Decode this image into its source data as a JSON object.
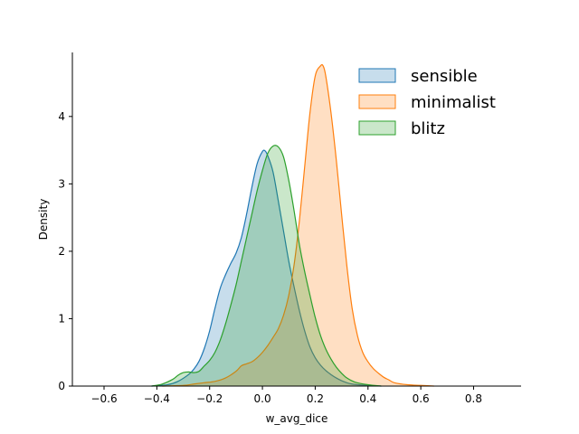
{
  "chart_data": {
    "type": "area",
    "xlabel": "w_avg_dice",
    "ylabel": "Density",
    "xlim": [
      -0.72,
      0.98
    ],
    "ylim": [
      0,
      4.95
    ],
    "x_ticks": [
      -0.6,
      -0.4,
      -0.2,
      0.0,
      0.2,
      0.4,
      0.6,
      0.8
    ],
    "x_tick_labels": [
      "−0.6",
      "−0.4",
      "−0.2",
      "0.0",
      "0.2",
      "0.4",
      "0.6",
      "0.8"
    ],
    "y_ticks": [
      0,
      1,
      2,
      3,
      4
    ],
    "y_tick_labels": [
      "0",
      "1",
      "2",
      "3",
      "4"
    ],
    "grid": false,
    "legend_position": "top-right",
    "series": [
      {
        "name": "sensible",
        "color": "#1f77b4",
        "x": [
          -0.42,
          -0.36,
          -0.32,
          -0.28,
          -0.26,
          -0.24,
          -0.22,
          -0.2,
          -0.18,
          -0.16,
          -0.14,
          -0.12,
          -0.1,
          -0.08,
          -0.06,
          -0.04,
          -0.02,
          0.0,
          0.01,
          0.02,
          0.04,
          0.06,
          0.08,
          0.1,
          0.12,
          0.14,
          0.16,
          0.18,
          0.2,
          0.22,
          0.24,
          0.26,
          0.28,
          0.3,
          0.32,
          0.34,
          0.36,
          0.4,
          0.45
        ],
        "y": [
          0.0,
          0.02,
          0.07,
          0.17,
          0.25,
          0.37,
          0.56,
          0.82,
          1.15,
          1.45,
          1.65,
          1.82,
          1.97,
          2.2,
          2.55,
          2.95,
          3.3,
          3.48,
          3.49,
          3.42,
          3.18,
          2.75,
          2.3,
          1.85,
          1.47,
          1.12,
          0.82,
          0.58,
          0.42,
          0.31,
          0.23,
          0.17,
          0.12,
          0.08,
          0.05,
          0.03,
          0.02,
          0.01,
          0.0
        ]
      },
      {
        "name": "minimalist",
        "color": "#ff7f0e",
        "x": [
          -0.38,
          -0.3,
          -0.26,
          -0.22,
          -0.18,
          -0.14,
          -0.1,
          -0.08,
          -0.06,
          -0.04,
          -0.02,
          0.0,
          0.02,
          0.04,
          0.06,
          0.08,
          0.1,
          0.12,
          0.14,
          0.16,
          0.18,
          0.2,
          0.22,
          0.23,
          0.24,
          0.26,
          0.28,
          0.3,
          0.32,
          0.34,
          0.36,
          0.38,
          0.4,
          0.42,
          0.44,
          0.46,
          0.48,
          0.5,
          0.55,
          0.6,
          0.65
        ],
        "y": [
          0.0,
          0.01,
          0.03,
          0.05,
          0.07,
          0.12,
          0.22,
          0.3,
          0.33,
          0.36,
          0.42,
          0.5,
          0.6,
          0.72,
          0.85,
          1.05,
          1.35,
          1.8,
          2.45,
          3.25,
          4.05,
          4.6,
          4.75,
          4.75,
          4.6,
          4.05,
          3.35,
          2.55,
          1.78,
          1.15,
          0.75,
          0.5,
          0.36,
          0.26,
          0.19,
          0.13,
          0.09,
          0.05,
          0.02,
          0.01,
          0.0
        ]
      },
      {
        "name": "blitz",
        "color": "#2ca02c",
        "x": [
          -0.42,
          -0.38,
          -0.34,
          -0.32,
          -0.3,
          -0.28,
          -0.26,
          -0.24,
          -0.22,
          -0.2,
          -0.18,
          -0.16,
          -0.14,
          -0.12,
          -0.1,
          -0.08,
          -0.06,
          -0.04,
          -0.02,
          0.0,
          0.02,
          0.04,
          0.06,
          0.08,
          0.1,
          0.12,
          0.14,
          0.16,
          0.18,
          0.2,
          0.22,
          0.24,
          0.26,
          0.28,
          0.3,
          0.32,
          0.35,
          0.4,
          0.45
        ],
        "y": [
          0.0,
          0.03,
          0.1,
          0.16,
          0.2,
          0.21,
          0.2,
          0.22,
          0.3,
          0.38,
          0.5,
          0.68,
          0.92,
          1.2,
          1.5,
          1.85,
          2.2,
          2.55,
          2.9,
          3.2,
          3.45,
          3.56,
          3.55,
          3.4,
          3.05,
          2.6,
          2.1,
          1.7,
          1.35,
          1.02,
          0.75,
          0.55,
          0.4,
          0.28,
          0.19,
          0.12,
          0.06,
          0.02,
          0.0
        ]
      }
    ]
  }
}
